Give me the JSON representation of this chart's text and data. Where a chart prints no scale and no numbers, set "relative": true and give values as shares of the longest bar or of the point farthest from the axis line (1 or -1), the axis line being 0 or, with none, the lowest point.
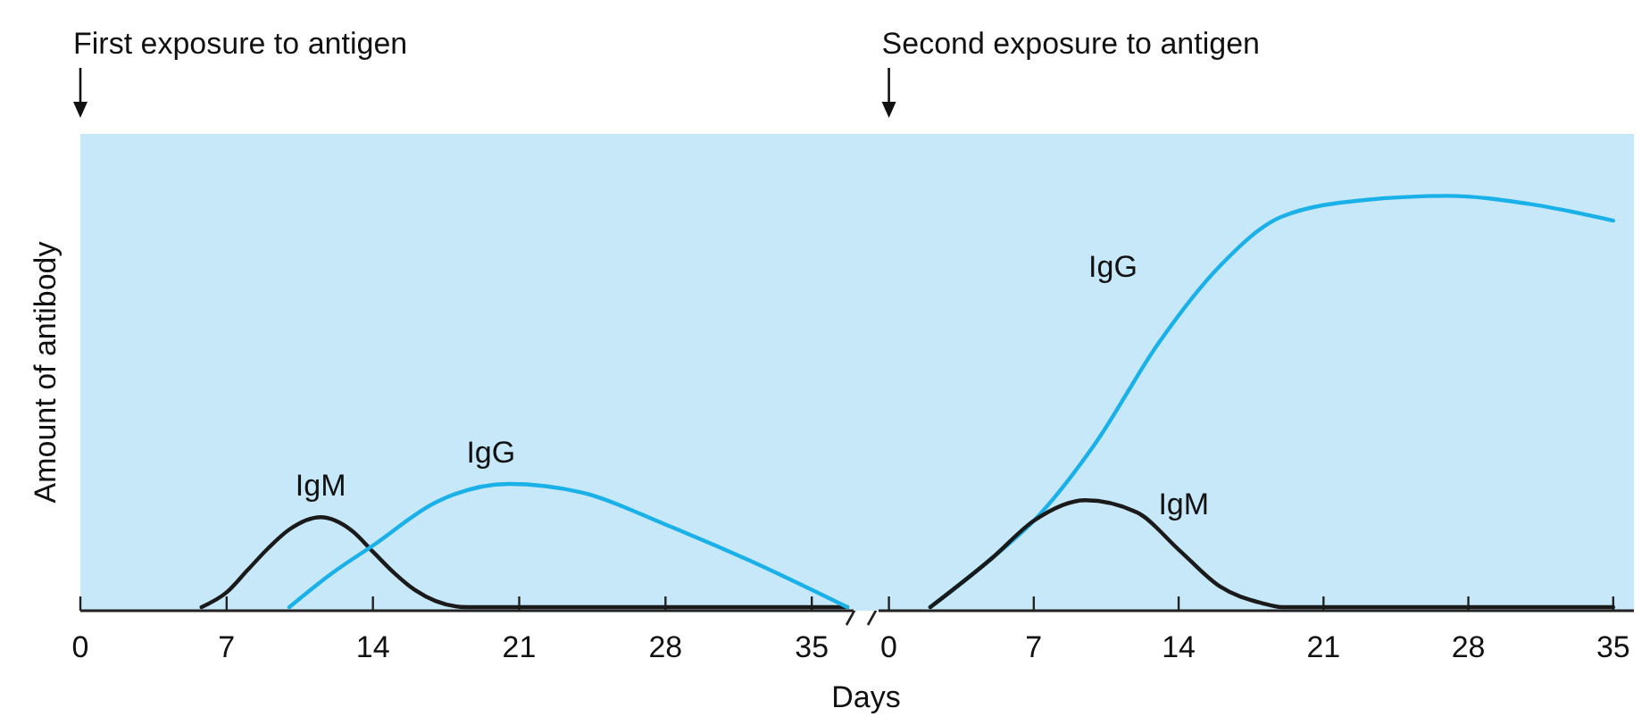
{
  "chart_data": [
    {
      "type": "line",
      "title": "First exposure to antigen",
      "xlabel": "Days",
      "ylabel": "Amount of antibody",
      "relative": true,
      "xlim": [
        0,
        37
      ],
      "xticks": [
        0,
        7,
        14,
        21,
        28,
        35
      ],
      "series": [
        {
          "name": "IgM",
          "color": "#1a1a1a",
          "x": [
            5.8,
            7,
            8,
            9,
            10,
            11.5,
            13,
            14,
            15,
            16,
            17,
            18.5,
            36.7
          ],
          "values": [
            0,
            0.12,
            0.3,
            0.48,
            0.63,
            0.73,
            0.62,
            0.45,
            0.28,
            0.14,
            0.05,
            0,
            0
          ]
        },
        {
          "name": "IgG",
          "color": "#1ab0e8",
          "x": [
            10,
            12,
            14,
            17,
            20.5,
            24,
            28,
            32,
            36.7
          ],
          "values": [
            0,
            0.27,
            0.5,
            0.85,
            1,
            0.93,
            0.67,
            0.38,
            0
          ]
        }
      ]
    },
    {
      "type": "line",
      "title": "Second exposure to antigen",
      "relative": true,
      "xlim": [
        -0.5,
        36
      ],
      "xticks": [
        0,
        7,
        14,
        21,
        28,
        35
      ],
      "series": [
        {
          "name": "IgG",
          "color": "#1ab0e8",
          "x": [
            2,
            5,
            7,
            10,
            13,
            16,
            19,
            23,
            27,
            31,
            35
          ],
          "values": [
            0,
            0.12,
            0.21,
            0.4,
            0.64,
            0.83,
            0.95,
            0.99,
            1,
            0.98,
            0.94
          ]
        },
        {
          "name": "IgM",
          "color": "#1a1a1a",
          "x": [
            2,
            5,
            7,
            9.5,
            12,
            14,
            16,
            18,
            19,
            35
          ],
          "values": [
            0,
            0.12,
            0.21,
            0.26,
            0.23,
            0.14,
            0.05,
            0.01,
            0,
            0
          ]
        }
      ]
    }
  ]
}
